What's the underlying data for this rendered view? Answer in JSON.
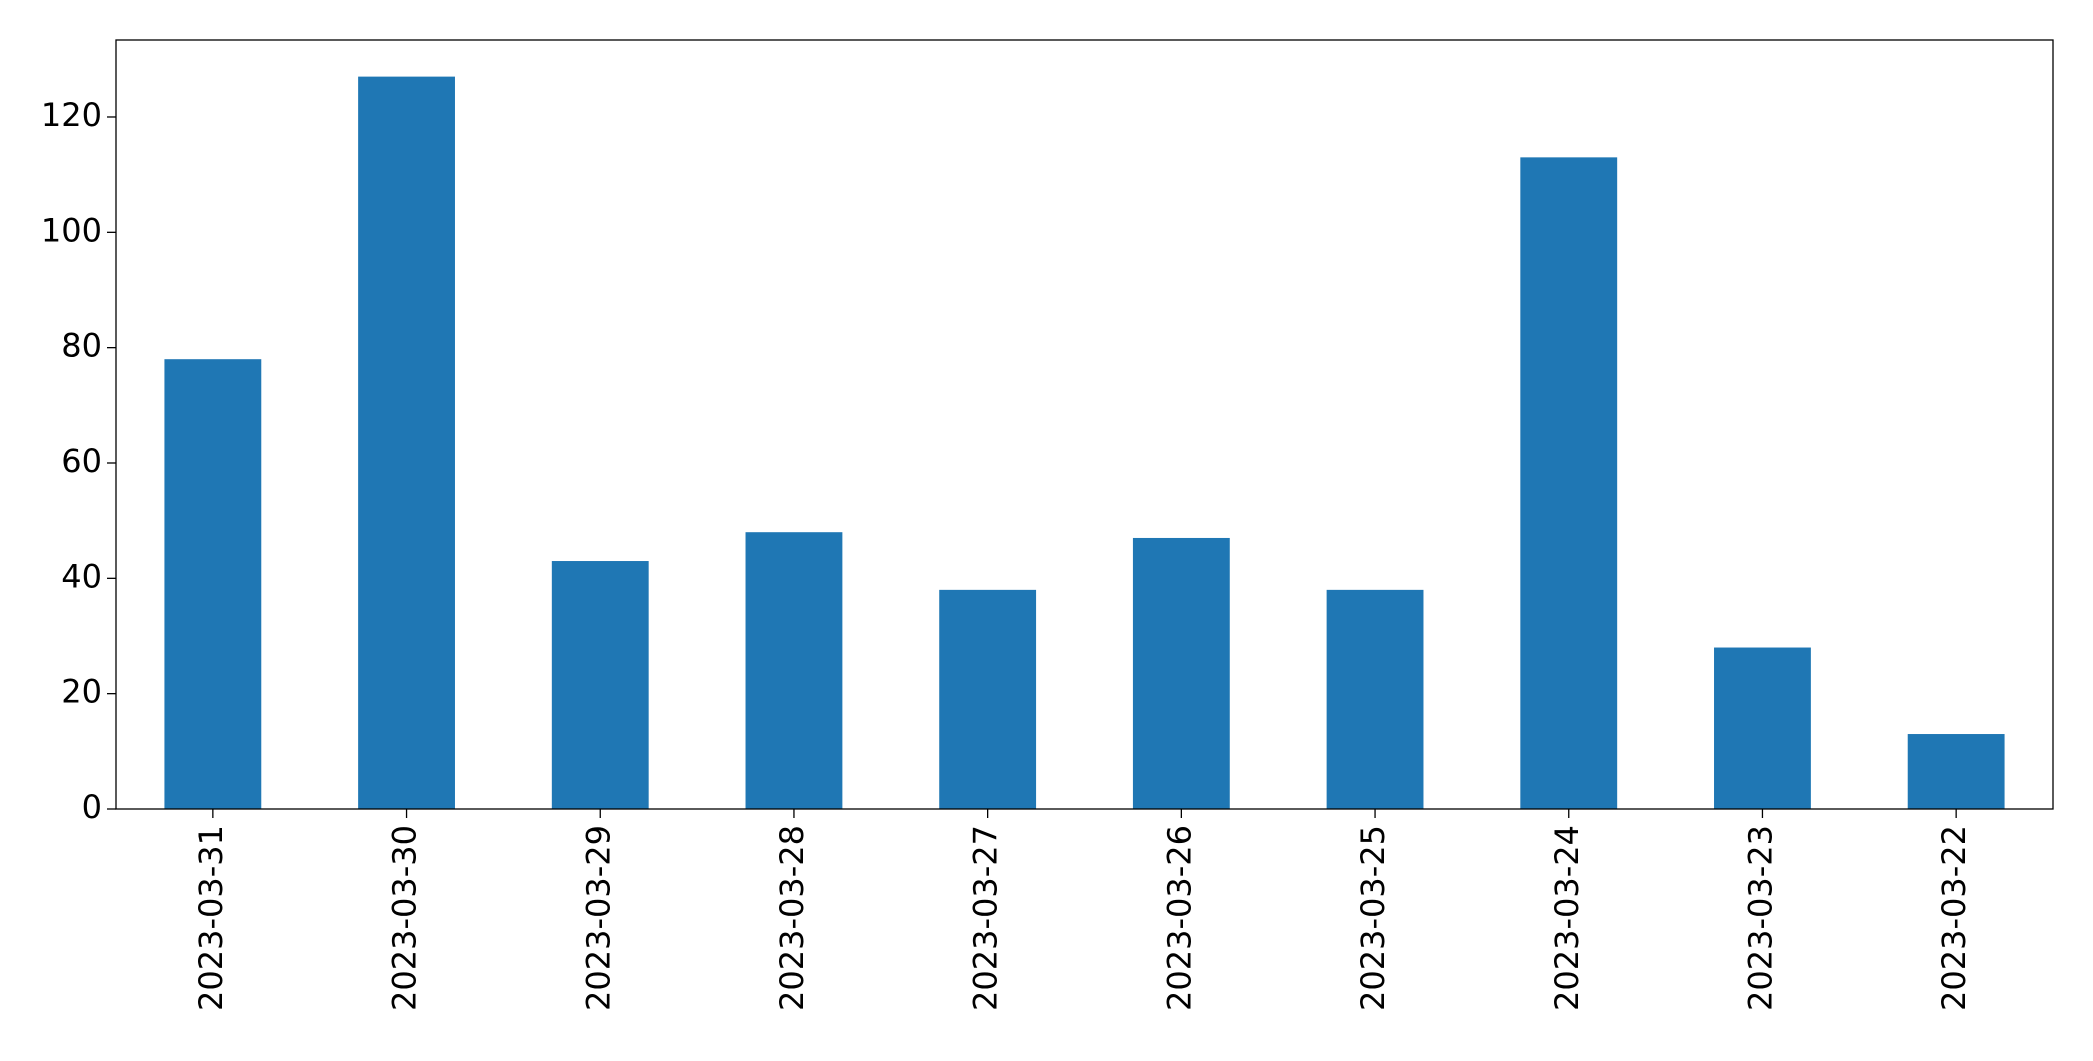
{
  "chart_data": {
    "type": "bar",
    "categories": [
      "2023-03-31",
      "2023-03-30",
      "2023-03-29",
      "2023-03-28",
      "2023-03-27",
      "2023-03-26",
      "2023-03-25",
      "2023-03-24",
      "2023-03-23",
      "2023-03-22"
    ],
    "values": [
      78,
      127,
      43,
      48,
      38,
      47,
      38,
      113,
      28,
      13
    ],
    "color": "#1f77b4",
    "ylim": [
      0,
      133.35
    ],
    "yticks": [
      0,
      20,
      40,
      60,
      80,
      100,
      120
    ],
    "grid": false
  }
}
